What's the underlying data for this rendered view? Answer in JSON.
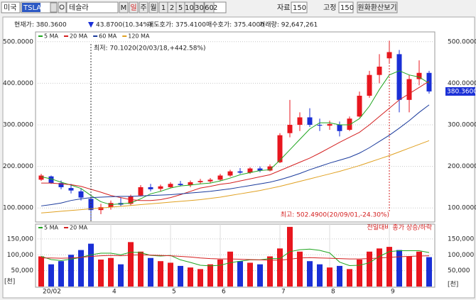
{
  "toolbar": {
    "market": "미국",
    "symbol": "TSLA",
    "name": "테슬라",
    "buttons": [
      "M",
      "일",
      "주",
      "월",
      "1",
      "2",
      "5",
      "10",
      "30",
      "60"
    ],
    "period_input": "2",
    "data_label": "자료",
    "data_count": "150",
    "fixed_label": "고정",
    "fixed_count": "150",
    "krw_button": "원화환산보기"
  },
  "info": {
    "price": "현재가: 380.3600",
    "change": "43.8700(10.34%)",
    "ask": "매도호가: 375.4100",
    "bid": "매수호가: 375.4000",
    "volume": "거래량: 92,647,261"
  },
  "chart_data": [
    {
      "type": "candlestick",
      "up_color": "#e8161e",
      "down_color": "#1a2fd6",
      "open": [
        168,
        176,
        160,
        148,
        140,
        122,
        95,
        102,
        112,
        110,
        130,
        150,
        146,
        150,
        158,
        155,
        162,
        164,
        168,
        178,
        188,
        185,
        195,
        190,
        210,
        280,
        300,
        318,
        300,
        298,
        300,
        288,
        320,
        370,
        420,
        460,
        470,
        360,
        410,
        425
      ],
      "high": [
        182,
        178,
        166,
        158,
        146,
        128,
        110,
        118,
        125,
        132,
        155,
        158,
        156,
        162,
        165,
        166,
        170,
        172,
        182,
        192,
        196,
        198,
        200,
        205,
        280,
        360,
        330,
        340,
        315,
        310,
        308,
        320,
        380,
        430,
        470,
        502.49,
        480,
        420,
        455,
        430
      ],
      "low": [
        165,
        158,
        145,
        135,
        118,
        70.102,
        85,
        96,
        105,
        106,
        128,
        140,
        140,
        148,
        152,
        150,
        158,
        160,
        165,
        175,
        182,
        182,
        186,
        188,
        208,
        270,
        285,
        295,
        285,
        288,
        272,
        285,
        318,
        365,
        400,
        450,
        330,
        330,
        395,
        375
      ],
      "close": [
        178,
        160,
        150,
        142,
        125,
        95,
        102,
        112,
        108,
        128,
        150,
        145,
        152,
        158,
        155,
        162,
        165,
        168,
        178,
        188,
        185,
        195,
        190,
        200,
        275,
        300,
        318,
        300,
        298,
        302,
        285,
        315,
        370,
        420,
        440,
        475,
        360,
        410,
        425,
        380.36
      ],
      "ma_series": [
        {
          "name": "5 MA",
          "color": "#1fa51f",
          "values": [
            175,
            170,
            162,
            155,
            147,
            130,
            115,
            108,
            110,
            112,
            122,
            134,
            140,
            148,
            153,
            155,
            158,
            160,
            165,
            172,
            180,
            185,
            190,
            192,
            215,
            240,
            265,
            290,
            305,
            305,
            300,
            300,
            315,
            345,
            385,
            420,
            430,
            420,
            415,
            400
          ]
        },
        {
          "name": "20 MA",
          "color": "#d42020",
          "values": [
            160,
            160,
            158,
            156,
            152,
            145,
            138,
            130,
            125,
            120,
            118,
            118,
            120,
            125,
            132,
            140,
            148,
            152,
            157,
            160,
            165,
            170,
            175,
            180,
            190,
            200,
            210,
            220,
            232,
            245,
            258,
            270,
            282,
            300,
            320,
            340,
            360,
            375,
            390,
            405
          ]
        },
        {
          "name": "60 MA",
          "color": "#1a3a9c",
          "values": [
            105,
            108,
            112,
            118,
            122,
            125,
            126,
            127,
            128,
            128,
            129,
            130,
            131,
            132,
            134,
            136,
            138,
            140,
            143,
            146,
            150,
            154,
            158,
            162,
            168,
            175,
            183,
            192,
            200,
            208,
            215,
            222,
            232,
            245,
            260,
            275,
            292,
            310,
            330,
            348
          ]
        },
        {
          "name": "120 MA",
          "color": "#e0a020",
          "values": [
            88,
            90,
            92,
            94,
            96,
            98,
            100,
            102,
            104,
            106,
            108,
            110,
            112,
            114,
            116,
            118,
            120,
            123,
            126,
            130,
            134,
            138,
            142,
            147,
            152,
            158,
            164,
            170,
            176,
            182,
            188,
            195,
            202,
            210,
            218,
            226,
            235,
            244,
            253,
            262
          ]
        }
      ],
      "ylim": [
        68,
        515
      ],
      "yticks": [
        {
          "value": 100,
          "label": "100.0000"
        },
        {
          "value": 200,
          "label": "200.0000"
        },
        {
          "value": 300,
          "label": "300.0000"
        },
        {
          "value": 400,
          "label": "400.0000"
        },
        {
          "value": 500,
          "label": "500.0000"
        }
      ],
      "grid": true,
      "low_annotation": "최저: 70.1020(20/03/18,+442.58%)",
      "high_annotation": "최고: 502.4900(20/09/01,-24.30%)",
      "current_price_label": "380.3600"
    },
    {
      "type": "bar",
      "title": "전일대비 종가 상승/하락",
      "unit_label": "[천]",
      "categories": [
        "20/02",
        null,
        null,
        null,
        null,
        null,
        null,
        "4",
        null,
        null,
        null,
        null,
        null,
        "5",
        null,
        null,
        null,
        null,
        "6",
        null,
        null,
        null,
        null,
        null,
        "7",
        null,
        null,
        null,
        null,
        "8",
        null,
        null,
        null,
        null,
        null,
        "9",
        null,
        null,
        null,
        null
      ],
      "values": [
        95000,
        70000,
        80000,
        100000,
        115000,
        135000,
        85000,
        90000,
        70000,
        140000,
        110000,
        90000,
        80000,
        75000,
        65000,
        60000,
        55000,
        70000,
        85000,
        110000,
        80000,
        75000,
        70000,
        95000,
        120000,
        188000,
        110000,
        80000,
        70000,
        60000,
        65000,
        55000,
        85000,
        110000,
        120000,
        125000,
        115000,
        95000,
        110000,
        92647
      ],
      "ma_series": [
        {
          "name": "5 MA",
          "color": "#1fa51f",
          "values": [
            95000,
            85000,
            82000,
            86000,
            92000,
            100000,
            105000,
            105000,
            100000,
            108000,
            107000,
            98000,
            96000,
            98000,
            84000,
            76000,
            67000,
            65000,
            67000,
            75000,
            80000,
            84000,
            84000,
            88000,
            88000,
            110000,
            116000,
            118000,
            114000,
            106000,
            77000,
            66000,
            67000,
            75000,
            95000,
            110000,
            113000,
            113000,
            113000,
            107000
          ]
        },
        {
          "name": "20 MA",
          "color": "#d42020",
          "values": [
            90000,
            90000,
            89000,
            90000,
            92000,
            95000,
            97000,
            98000,
            97000,
            99000,
            100000,
            99000,
            98000,
            97000,
            95000,
            93000,
            90000,
            88000,
            87000,
            87000,
            86000,
            85000,
            84000,
            83000,
            83000,
            86000,
            90000,
            91000,
            90000,
            89000,
            88000,
            87000,
            87000,
            88000,
            90000,
            92000,
            94000,
            95000,
            96000,
            97000
          ]
        }
      ],
      "ylim": [
        0,
        190000
      ],
      "yticks": [
        {
          "value": 50000,
          "label": "50,000"
        },
        {
          "value": 100000,
          "label": "100,000"
        },
        {
          "value": 150000,
          "label": "150,000"
        }
      ],
      "grid": true
    }
  ]
}
